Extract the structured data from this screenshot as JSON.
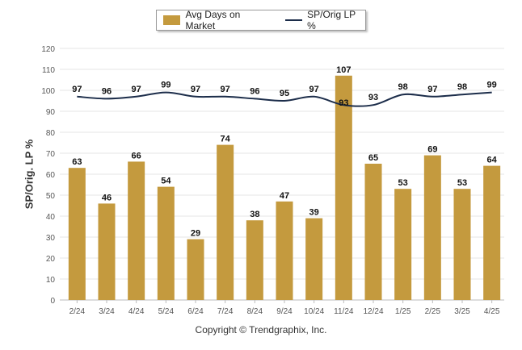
{
  "legend": {
    "bar_label": "Avg Days on Market",
    "line_label": "SP/Orig LP %"
  },
  "copyright": "Copyright © Trendgraphix, Inc.",
  "colors": {
    "bar": "#c49a3e",
    "line": "#1c2d4a",
    "grid": "#e6e6e6",
    "axis_text": "#555555"
  },
  "chart_data": {
    "type": "bar",
    "title": "",
    "xlabel": "",
    "ylabel": "SP/Orig. LP %",
    "ylim": [
      0,
      120
    ],
    "yticks": [
      0,
      10,
      20,
      30,
      40,
      50,
      60,
      70,
      80,
      90,
      100,
      110,
      120
    ],
    "grid": true,
    "legend_position": "top-center",
    "categories": [
      "2/24",
      "3/24",
      "4/24",
      "5/24",
      "6/24",
      "7/24",
      "8/24",
      "9/24",
      "10/24",
      "11/24",
      "12/24",
      "1/25",
      "2/25",
      "3/25",
      "4/25"
    ],
    "series": [
      {
        "name": "Avg Days on Market",
        "type": "bar",
        "values": [
          63,
          46,
          66,
          54,
          29,
          74,
          38,
          47,
          39,
          107,
          65,
          53,
          69,
          53,
          64
        ]
      },
      {
        "name": "SP/Orig LP %",
        "type": "line",
        "values": [
          97,
          96,
          97,
          99,
          97,
          97,
          96,
          95,
          97,
          93,
          93,
          98,
          97,
          98,
          99
        ]
      }
    ]
  }
}
